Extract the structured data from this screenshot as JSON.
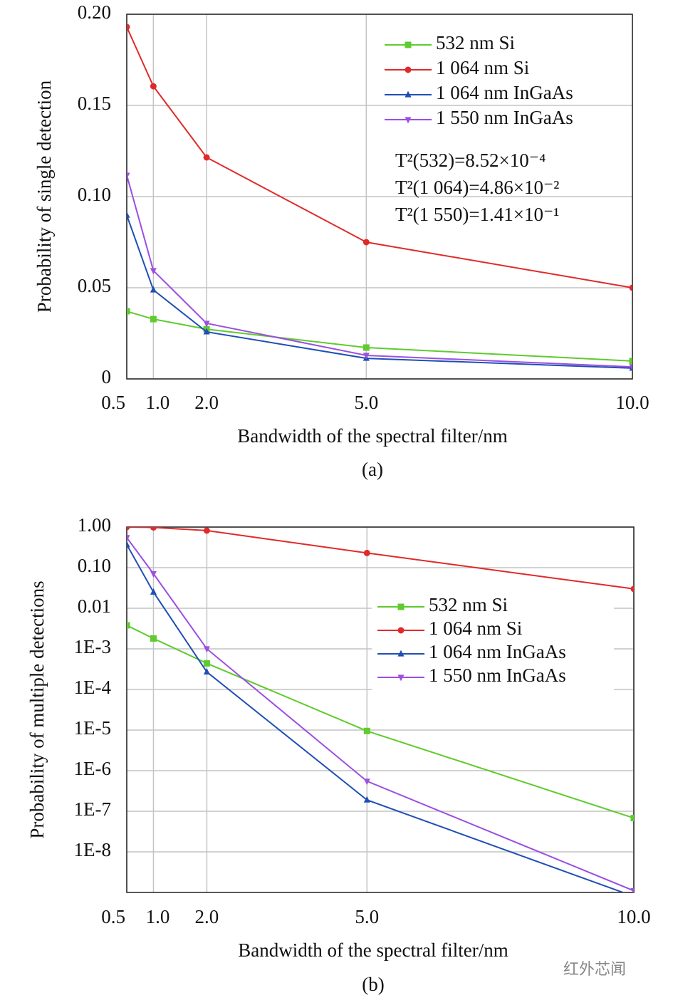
{
  "chart_data": [
    {
      "type": "line",
      "ylabel": "Probability of single detection",
      "xlabel": "Bandwidth of the spectral filter/nm",
      "caption": "(a)",
      "x": [
        0.5,
        1,
        2,
        5,
        10
      ],
      "series": [
        {
          "name": "532 nm Si",
          "color": "#5ecb2e",
          "marker": "square",
          "values": [
            0.0371,
            0.0328,
            0.0273,
            0.0172,
            0.0098
          ]
        },
        {
          "name": "1 064 nm Si",
          "color": "#e02a2a",
          "marker": "circle",
          "values": [
            0.193,
            0.1605,
            0.1215,
            0.075,
            0.05
          ]
        },
        {
          "name": "1 064 nm InGaAs",
          "color": "#1f4fb5",
          "marker": "triangle-up",
          "values": [
            0.0898,
            0.0488,
            0.0258,
            0.0113,
            0.0059
          ]
        },
        {
          "name": "1 550 nm InGaAs",
          "color": "#9b4fe0",
          "marker": "triangle-down",
          "values": [
            0.1117,
            0.0594,
            0.0305,
            0.0129,
            0.0066
          ]
        }
      ],
      "annotations": [
        "T²(532)=8.52×10⁻⁴",
        "T²(1 064)=4.86×10⁻²",
        "T²(1 550)=1.41×10⁻¹"
      ],
      "xlim": [
        0.5,
        10
      ],
      "xticks": [
        0.5,
        {
          "value": 1,
          "label": "1.0"
        },
        {
          "value": 2,
          "label": "2.0"
        },
        {
          "value": 5,
          "label": "5.0"
        },
        {
          "value": 10,
          "label": "10.0"
        }
      ],
      "ylim": [
        0,
        0.2
      ],
      "yticks": [
        0,
        0.05,
        {
          "value": 0.1,
          "label": "0.10"
        },
        0.15,
        {
          "value": 0.2,
          "label": "0.20"
        }
      ],
      "yscale": "linear",
      "grid": true,
      "legend": "upper right"
    },
    {
      "type": "line",
      "ylabel": "Probability of multiple detections",
      "xlabel": "Bandwidth of the spectral filter/nm",
      "caption": "(b)",
      "x": [
        0.5,
        1,
        2,
        5,
        10
      ],
      "series": [
        {
          "name": "532 nm Si",
          "color": "#5ecb2e",
          "marker": "square",
          "values": [
            0.0038,
            0.0018,
            0.00044,
            9.5e-06,
            6.8e-08
          ]
        },
        {
          "name": "1 064 nm Si",
          "color": "#e02a2a",
          "marker": "circle",
          "values": [
            1.0,
            0.98,
            0.82,
            0.23,
            0.03
          ]
        },
        {
          "name": "1 064 nm InGaAs",
          "color": "#1f4fb5",
          "marker": "triangle-up",
          "values": [
            0.37,
            0.025,
            0.00027,
            1.9e-07,
            8e-10
          ]
        },
        {
          "name": "1 550 nm InGaAs",
          "color": "#9b4fe0",
          "marker": "triangle-down",
          "values": [
            0.55,
            0.071,
            0.001,
            5.5e-07,
            1.1e-09
          ]
        }
      ],
      "xlim": [
        0.5,
        10
      ],
      "xticks": [
        0.5,
        {
          "value": 1,
          "label": "1.0"
        },
        {
          "value": 2,
          "label": "2.0"
        },
        {
          "value": 5,
          "label": "5.0"
        },
        {
          "value": 10,
          "label": "10.0"
        }
      ],
      "ylim": [
        1e-09,
        1
      ],
      "yticks": [
        {
          "value": 1,
          "label": "1.00"
        },
        {
          "value": 0.1,
          "label": "0.10"
        },
        0.01,
        {
          "value": 0.001,
          "label": "1E-3"
        },
        {
          "value": 0.0001,
          "label": "1E-4"
        },
        {
          "value": 1e-05,
          "label": "1E-5"
        },
        {
          "value": 1e-06,
          "label": "1E-6"
        },
        {
          "value": 1e-07,
          "label": "1E-7"
        },
        {
          "value": 1e-08,
          "label": "1E-8"
        }
      ],
      "yscale": "log",
      "grid": true,
      "legend": "center right"
    }
  ],
  "watermark": "红外芯闻"
}
